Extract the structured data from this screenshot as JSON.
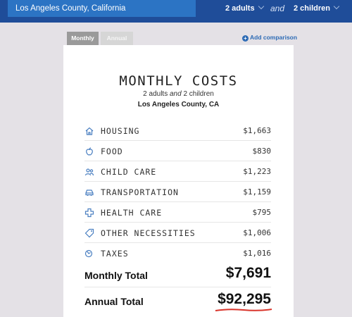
{
  "header": {
    "location": "Los Angeles County, California",
    "adults": "2 adults",
    "conjunction": "and",
    "children": "2 children"
  },
  "tabs": [
    {
      "label": "Monthly",
      "active": true
    },
    {
      "label": "Annual",
      "active": false
    }
  ],
  "add_comparison": "Add comparison",
  "card": {
    "title": "MONTHLY COSTS",
    "subtitle_adults": "2 adults",
    "subtitle_and": "and",
    "subtitle_children": "2 children",
    "county": "Los Angeles County, CA",
    "items": [
      {
        "icon": "house-icon",
        "label": "HOUSING",
        "value": "$1,663"
      },
      {
        "icon": "apple-icon",
        "label": "FOOD",
        "value": "$830"
      },
      {
        "icon": "people-icon",
        "label": "CHILD CARE",
        "value": "$1,223"
      },
      {
        "icon": "car-icon",
        "label": "TRANSPORTATION",
        "value": "$1,159"
      },
      {
        "icon": "medical-cross-icon",
        "label": "HEALTH CARE",
        "value": "$795"
      },
      {
        "icon": "tag-icon",
        "label": "OTHER NECESSITIES",
        "value": "$1,006"
      },
      {
        "icon": "coins-icon",
        "label": "TAXES",
        "value": "$1,016"
      }
    ],
    "monthly_total_label": "Monthly Total",
    "monthly_total_value": "$7,691",
    "annual_total_label": "Annual Total",
    "annual_total_value": "$92,295"
  },
  "colors": {
    "header_bg": "#1f4d99",
    "location_bg": "#2c74c4",
    "accent_link": "#2d6bb5",
    "icon_blue": "#4a7fc1",
    "underline_red": "#d9342b"
  }
}
